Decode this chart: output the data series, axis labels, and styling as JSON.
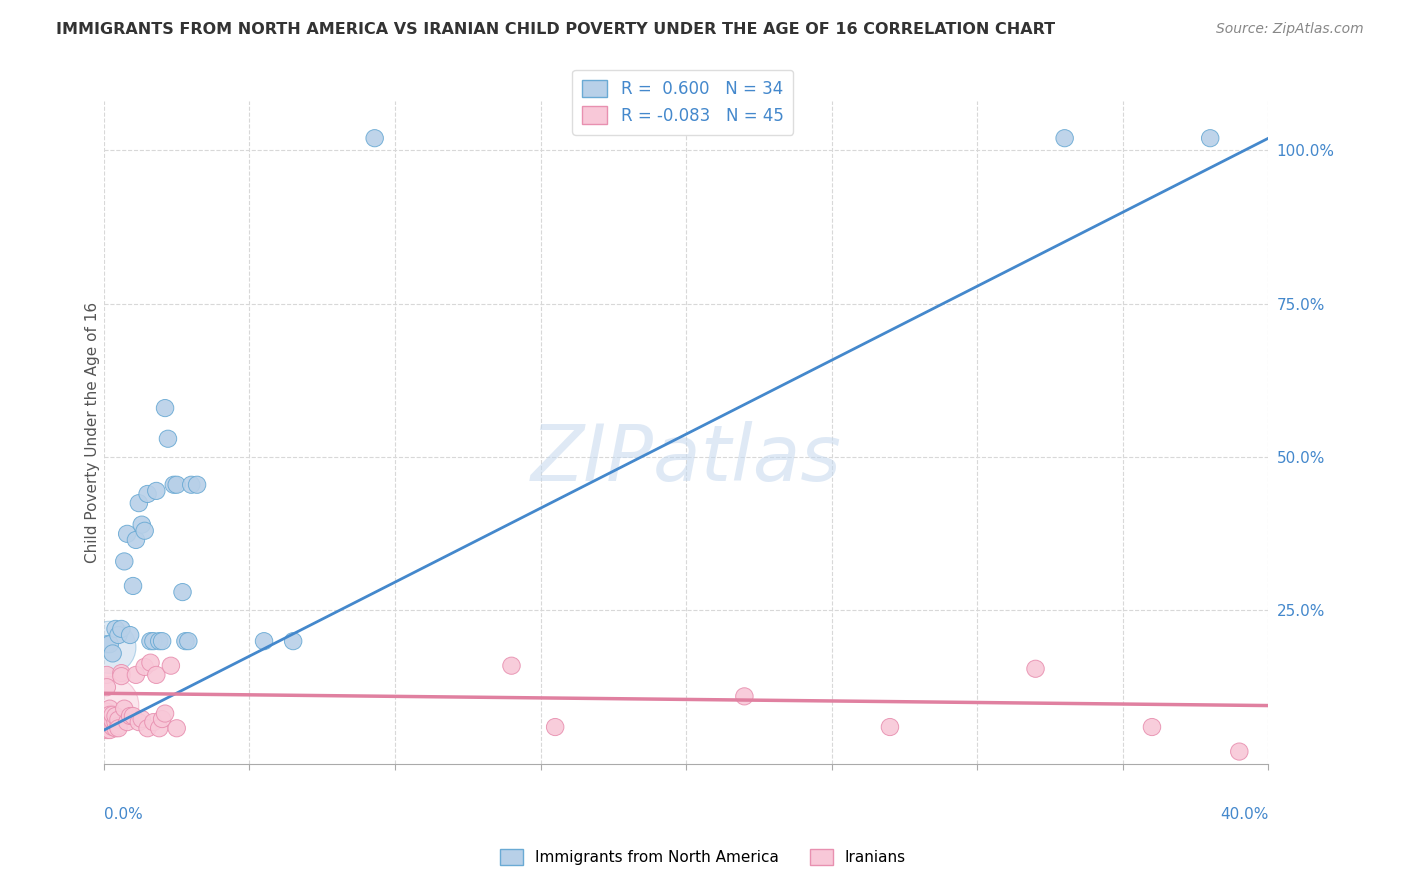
{
  "title": "IMMIGRANTS FROM NORTH AMERICA VS IRANIAN CHILD POVERTY UNDER THE AGE OF 16 CORRELATION CHART",
  "source": "Source: ZipAtlas.com",
  "ylabel": "Child Poverty Under the Age of 16",
  "xlim": [
    0.0,
    0.4
  ],
  "ylim": [
    0.0,
    1.08
  ],
  "yticks": [
    0.25,
    0.5,
    0.75,
    1.0
  ],
  "ytick_labels": [
    "25.0%",
    "50.0%",
    "75.0%",
    "100.0%"
  ],
  "xticks": [
    0.0,
    0.05,
    0.1,
    0.15,
    0.2,
    0.25,
    0.3,
    0.35,
    0.4
  ],
  "blue_R": 0.6,
  "blue_N": 34,
  "pink_R": -0.083,
  "pink_N": 45,
  "legend_label_blue": "Immigrants from North America",
  "legend_label_pink": "Iranians",
  "watermark": "ZIPatlas",
  "bg_color": "#ffffff",
  "grid_color": "#d8d8d8",
  "blue_color": "#b8d0e8",
  "blue_edge_color": "#6aaad4",
  "blue_line_color": "#4488cc",
  "pink_color": "#f8c8d8",
  "pink_edge_color": "#e890b0",
  "pink_line_color": "#e080a0",
  "blue_scatter": [
    [
      0.001,
      0.195
    ],
    [
      0.002,
      0.195
    ],
    [
      0.003,
      0.18
    ],
    [
      0.004,
      0.22
    ],
    [
      0.005,
      0.21
    ],
    [
      0.006,
      0.22
    ],
    [
      0.007,
      0.33
    ],
    [
      0.008,
      0.375
    ],
    [
      0.009,
      0.21
    ],
    [
      0.01,
      0.29
    ],
    [
      0.011,
      0.365
    ],
    [
      0.012,
      0.425
    ],
    [
      0.013,
      0.39
    ],
    [
      0.014,
      0.38
    ],
    [
      0.015,
      0.44
    ],
    [
      0.016,
      0.2
    ],
    [
      0.017,
      0.2
    ],
    [
      0.018,
      0.445
    ],
    [
      0.019,
      0.2
    ],
    [
      0.02,
      0.2
    ],
    [
      0.021,
      0.58
    ],
    [
      0.022,
      0.53
    ],
    [
      0.024,
      0.455
    ],
    [
      0.025,
      0.455
    ],
    [
      0.027,
      0.28
    ],
    [
      0.028,
      0.2
    ],
    [
      0.029,
      0.2
    ],
    [
      0.03,
      0.455
    ],
    [
      0.032,
      0.455
    ],
    [
      0.055,
      0.2
    ],
    [
      0.065,
      0.2
    ],
    [
      0.093,
      1.02
    ],
    [
      0.33,
      1.02
    ],
    [
      0.38,
      1.02
    ]
  ],
  "pink_scatter": [
    [
      0.001,
      0.145
    ],
    [
      0.001,
      0.125
    ],
    [
      0.001,
      0.085
    ],
    [
      0.001,
      0.075
    ],
    [
      0.001,
      0.065
    ],
    [
      0.001,
      0.055
    ],
    [
      0.002,
      0.09
    ],
    [
      0.002,
      0.08
    ],
    [
      0.002,
      0.065
    ],
    [
      0.002,
      0.055
    ],
    [
      0.003,
      0.06
    ],
    [
      0.003,
      0.07
    ],
    [
      0.003,
      0.08
    ],
    [
      0.004,
      0.058
    ],
    [
      0.004,
      0.068
    ],
    [
      0.004,
      0.078
    ],
    [
      0.005,
      0.062
    ],
    [
      0.005,
      0.072
    ],
    [
      0.005,
      0.058
    ],
    [
      0.006,
      0.148
    ],
    [
      0.006,
      0.143
    ],
    [
      0.007,
      0.09
    ],
    [
      0.008,
      0.068
    ],
    [
      0.009,
      0.078
    ],
    [
      0.01,
      0.078
    ],
    [
      0.011,
      0.145
    ],
    [
      0.012,
      0.068
    ],
    [
      0.013,
      0.073
    ],
    [
      0.014,
      0.158
    ],
    [
      0.015,
      0.058
    ],
    [
      0.016,
      0.165
    ],
    [
      0.017,
      0.068
    ],
    [
      0.018,
      0.145
    ],
    [
      0.019,
      0.058
    ],
    [
      0.02,
      0.073
    ],
    [
      0.021,
      0.082
    ],
    [
      0.023,
      0.16
    ],
    [
      0.025,
      0.058
    ],
    [
      0.14,
      0.16
    ],
    [
      0.155,
      0.06
    ],
    [
      0.22,
      0.11
    ],
    [
      0.27,
      0.06
    ],
    [
      0.32,
      0.155
    ],
    [
      0.36,
      0.06
    ],
    [
      0.39,
      0.02
    ]
  ],
  "blue_line": [
    [
      0.0,
      0.055
    ],
    [
      0.4,
      1.02
    ]
  ],
  "pink_line": [
    [
      0.0,
      0.115
    ],
    [
      0.4,
      0.095
    ]
  ]
}
